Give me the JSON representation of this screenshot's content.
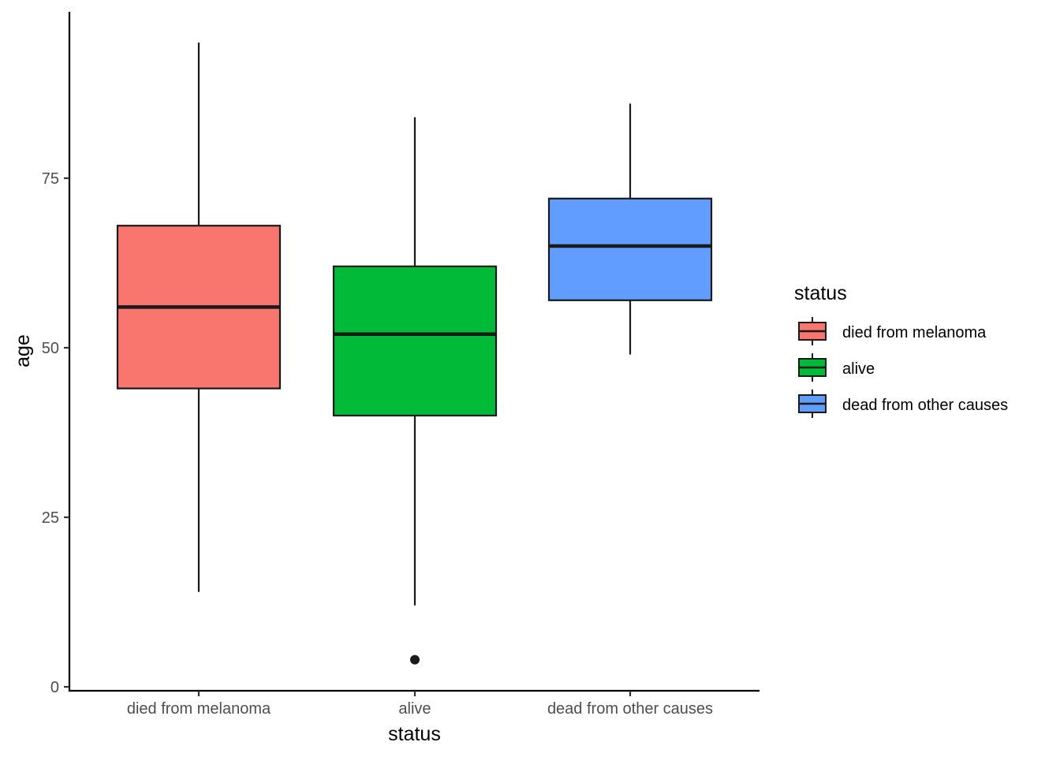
{
  "chart_data": {
    "type": "boxplot",
    "xlabel": "status",
    "ylabel": "age",
    "ylim": [
      0,
      100
    ],
    "yticks": [
      0,
      25,
      50,
      75
    ],
    "grid": false,
    "legend": {
      "title": "status",
      "position": "right"
    },
    "categories": [
      "died from melanoma",
      "alive",
      "dead from other causes"
    ],
    "boxes": [
      {
        "name": "died from melanoma",
        "color": "#F8766D",
        "whisker_low": 14,
        "q1": 44,
        "median": 56,
        "q3": 68,
        "whisker_high": 95,
        "outliers": []
      },
      {
        "name": "alive",
        "color": "#00BA38",
        "whisker_low": 12,
        "q1": 40,
        "median": 52,
        "q3": 62,
        "whisker_high": 84,
        "outliers": [
          4
        ]
      },
      {
        "name": "dead from other causes",
        "color": "#619CFF",
        "whisker_low": 49,
        "q1": 57,
        "median": 65,
        "q3": 72,
        "whisker_high": 86,
        "outliers": []
      }
    ]
  }
}
